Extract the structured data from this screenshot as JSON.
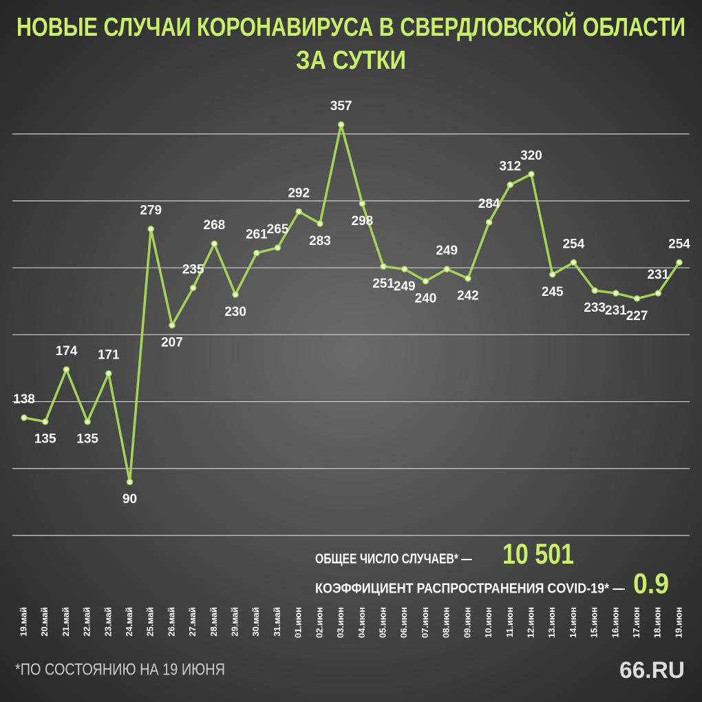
{
  "chart_data": {
    "type": "line",
    "title": [
      "НОВЫЕ СЛУЧАИ КОРОНАВИРУСА В СВЕРДЛОВСКОЙ ОБЛАСТИ",
      "ЗА СУТКИ"
    ],
    "categories": [
      "19.май",
      "20.май",
      "21.май",
      "22.май",
      "23.май",
      "24.май",
      "25.май",
      "26.май",
      "27.май",
      "28.май",
      "29.май",
      "30.май",
      "31.май",
      "01.июн",
      "02.июн",
      "03.июн",
      "04.июн",
      "05.июн",
      "06.июн",
      "07.июн",
      "08.июн",
      "09.июн",
      "10.июн",
      "11.июн",
      "12.июн",
      "13.июн",
      "14.июн",
      "15.июн",
      "16.июн",
      "17.июн",
      "18.июн",
      "19.июн"
    ],
    "values": [
      138,
      135,
      174,
      135,
      171,
      90,
      279,
      207,
      235,
      268,
      230,
      261,
      265,
      292,
      283,
      357,
      298,
      251,
      249,
      240,
      249,
      242,
      284,
      312,
      320,
      245,
      254,
      233,
      231,
      227,
      231,
      254
    ],
    "color": "#a5d35a",
    "ylim": [
      50,
      375
    ],
    "yticks": [
      50,
      100,
      150,
      200,
      250,
      300,
      350
    ],
    "grid": true,
    "stats": [
      {
        "label": "ОБЩЕЕ ЧИСЛО СЛУЧАЕВ* —",
        "value": "10 501"
      },
      {
        "label": "КОЭФФИЦИЕНТ РАСПРОСТРАНЕНИЯ COVID-19* —",
        "value": "0.9"
      }
    ],
    "footnote": "*ПО СОСТОЯНИЮ НА 19 ИЮНЯ",
    "logo": "66.RU"
  }
}
